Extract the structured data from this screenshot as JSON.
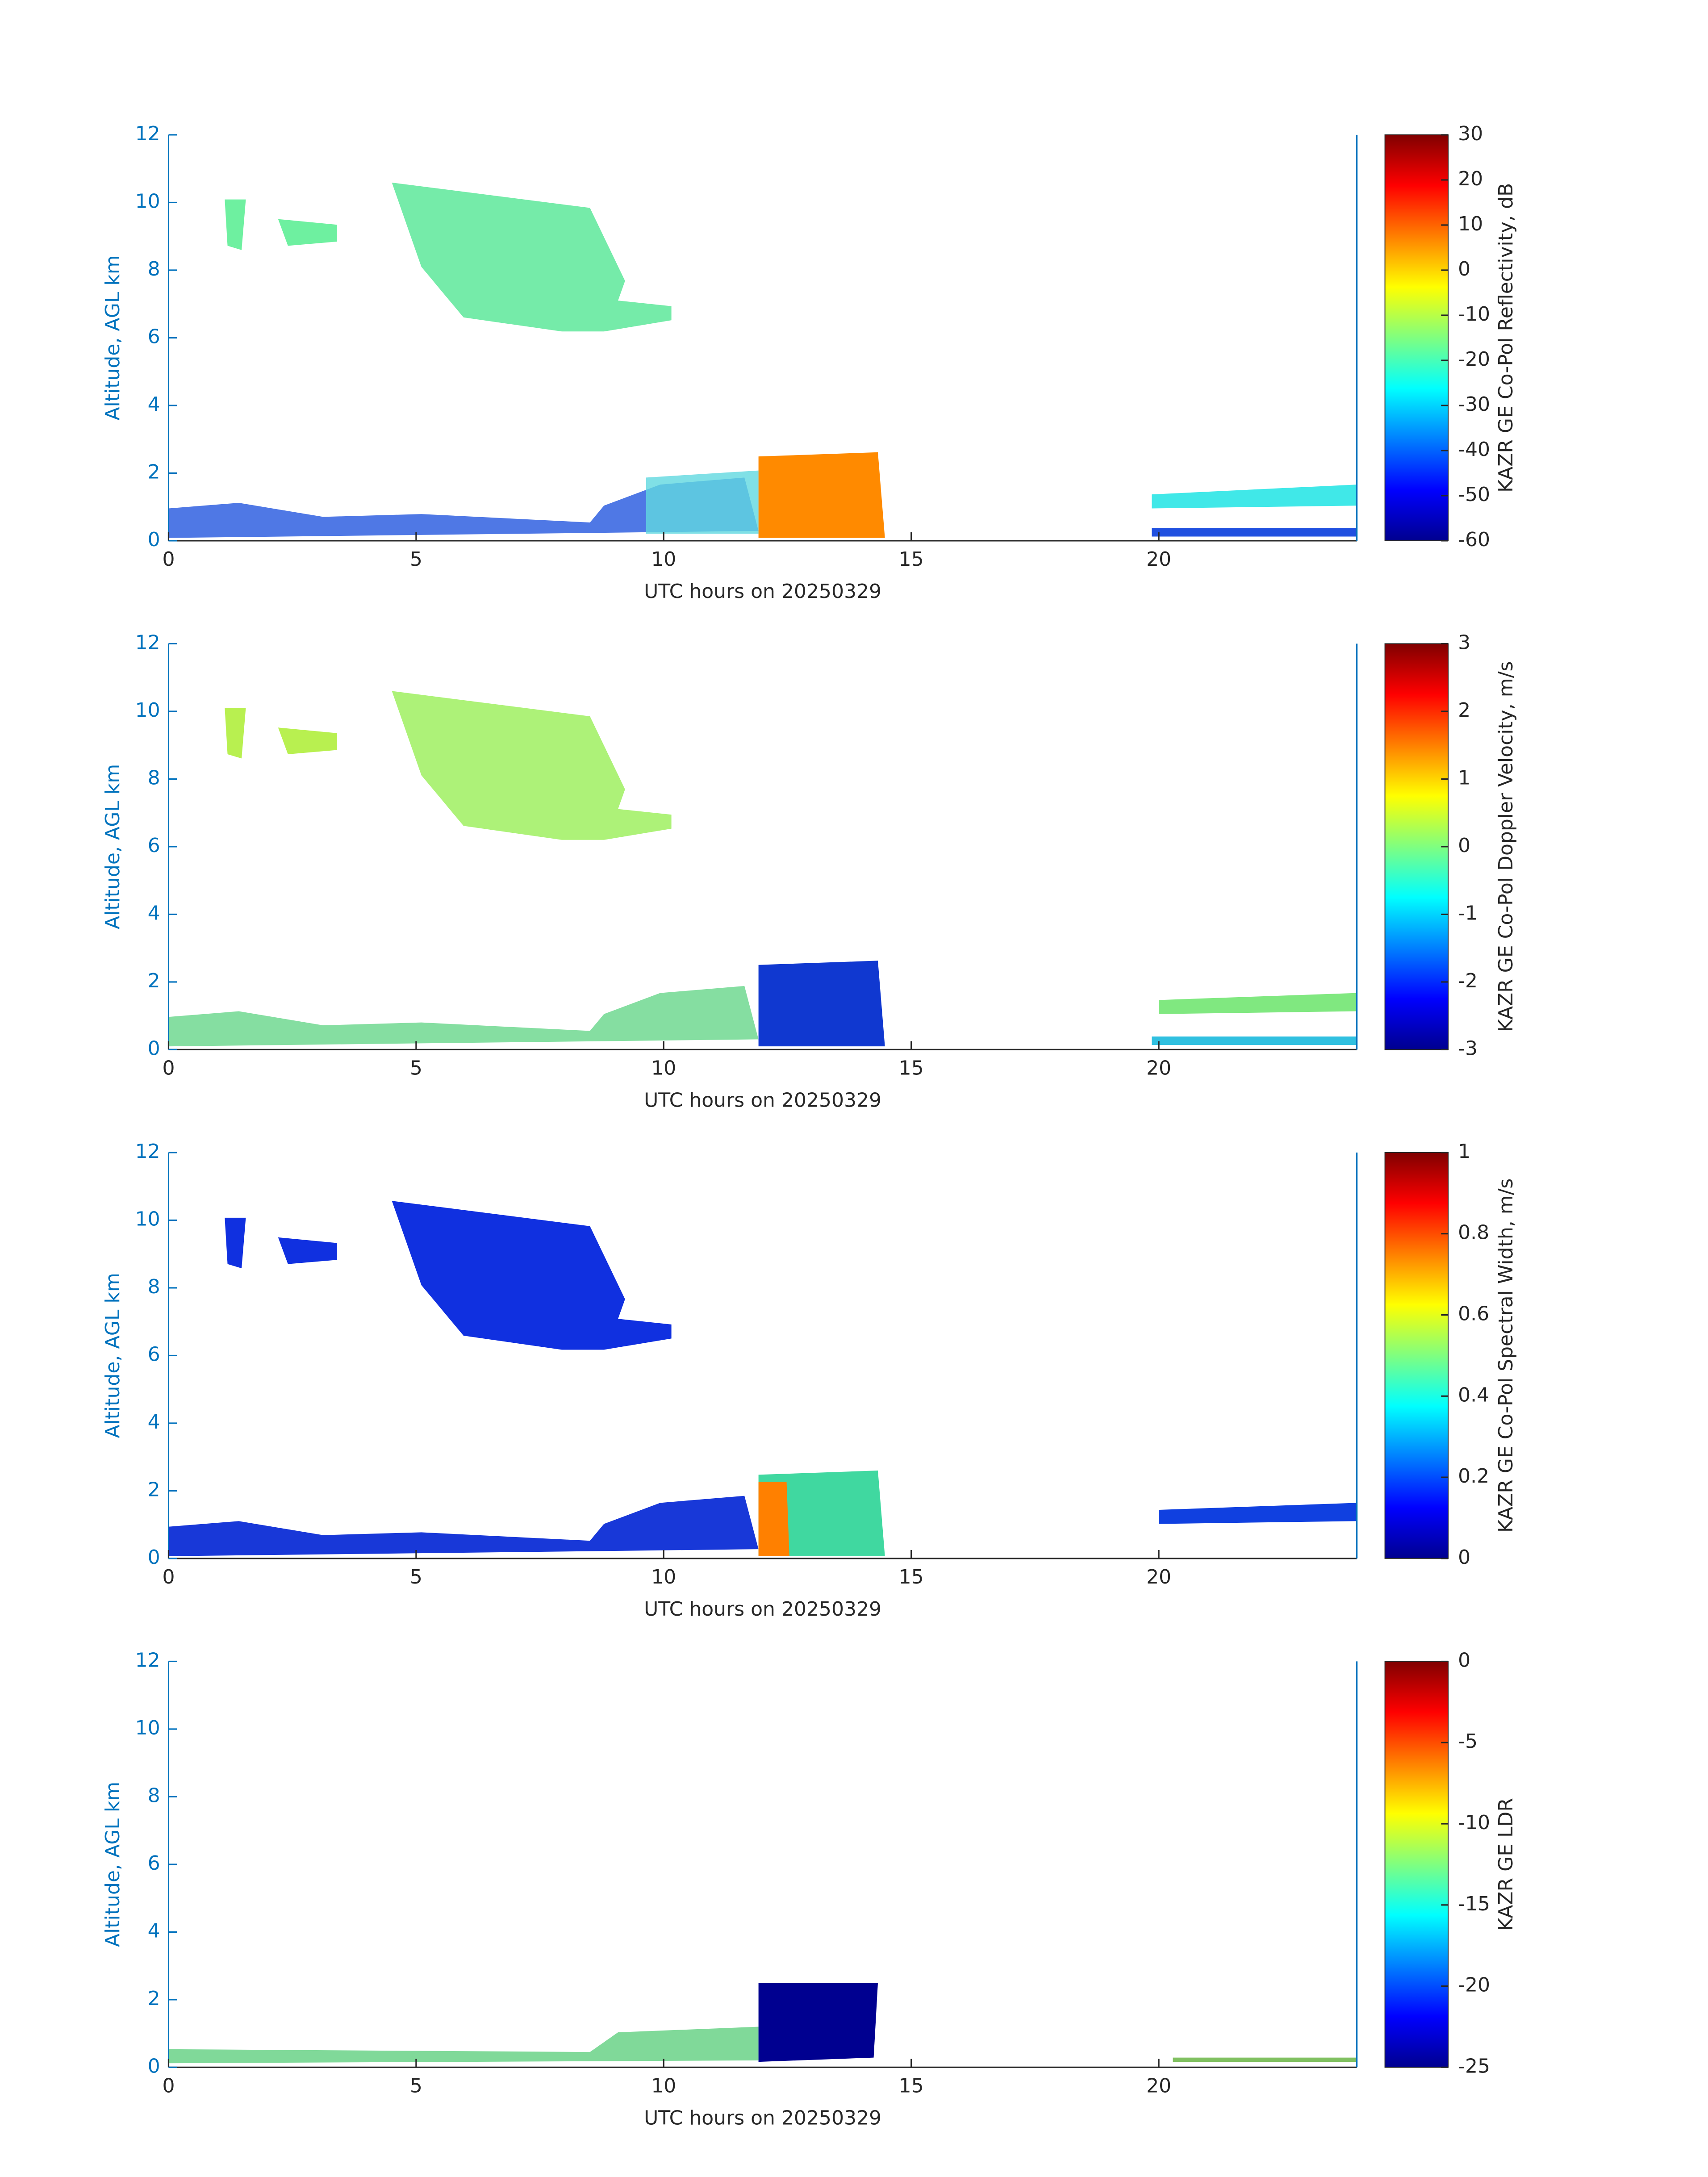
{
  "chart_data": [
    {
      "type": "heatmap",
      "xlabel": "UTC hours on 20250329",
      "ylabel": "Altitude, AGL km",
      "xlim": [
        0,
        24
      ],
      "xticks": [
        0,
        5,
        10,
        15,
        20
      ],
      "ylim": [
        0,
        12
      ],
      "yticks": [
        0,
        2,
        4,
        6,
        8,
        10,
        12
      ],
      "colorbar": {
        "label": "KAZR GE Co-Pol Reflectivity, dB",
        "lim": [
          -60,
          30
        ],
        "ticks": [
          -60,
          -50,
          -40,
          -30,
          -20,
          -10,
          0,
          10,
          20,
          30
        ],
        "colormap": "jet"
      }
    },
    {
      "type": "heatmap",
      "xlabel": "UTC hours on 20250329",
      "ylabel": "Altitude, AGL km",
      "xlim": [
        0,
        24
      ],
      "xticks": [
        0,
        5,
        10,
        15,
        20
      ],
      "ylim": [
        0,
        12
      ],
      "yticks": [
        0,
        2,
        4,
        6,
        8,
        10,
        12
      ],
      "colorbar": {
        "label": "KAZR GE Co-Pol Doppler Velocity, m/s",
        "lim": [
          -3,
          3
        ],
        "ticks": [
          -3,
          -2,
          -1,
          0,
          1,
          2,
          3
        ],
        "colormap": "jet"
      }
    },
    {
      "type": "heatmap",
      "xlabel": "UTC hours on 20250329",
      "ylabel": "Altitude, AGL km",
      "xlim": [
        0,
        24
      ],
      "xticks": [
        0,
        5,
        10,
        15,
        20
      ],
      "ylim": [
        0,
        12
      ],
      "yticks": [
        0,
        2,
        4,
        6,
        8,
        10,
        12
      ],
      "colorbar": {
        "label": "KAZR GE Co-Pol Spectral Width, m/s",
        "lim": [
          0,
          1
        ],
        "ticks": [
          0,
          0.2,
          0.4,
          0.6,
          0.8,
          1
        ],
        "colormap": "jet"
      }
    },
    {
      "type": "heatmap",
      "xlabel": "UTC hours on 20250329",
      "ylabel": "Altitude, AGL km",
      "xlim": [
        0,
        24
      ],
      "xticks": [
        0,
        5,
        10,
        15,
        20
      ],
      "ylim": [
        0,
        12
      ],
      "yticks": [
        0,
        2,
        4,
        6,
        8,
        10,
        12
      ],
      "colorbar": {
        "label": "KAZR GE LDR",
        "lim": [
          -25,
          0
        ],
        "ticks": [
          -25,
          -20,
          -15,
          -10,
          -5,
          0
        ],
        "colormap": "jet"
      }
    }
  ]
}
